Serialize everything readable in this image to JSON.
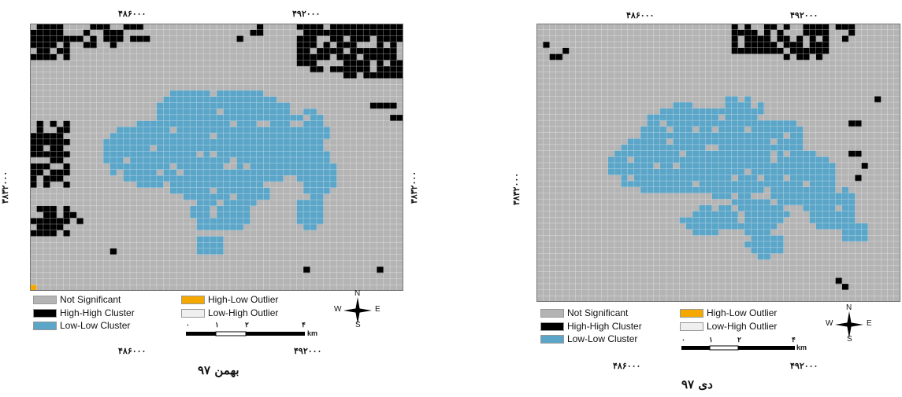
{
  "legend": {
    "not_significant": {
      "label": "Not Significant",
      "color": "#b4b4b4"
    },
    "high_high": {
      "label": "High-High Cluster",
      "color": "#000000"
    },
    "low_low": {
      "label": "Low-Low Cluster",
      "color": "#5aa5c8"
    },
    "high_low": {
      "label": "High-Low Outlier",
      "color": "#f5a800"
    },
    "low_high": {
      "label": "Low-High Outlier",
      "color": "#efefef"
    }
  },
  "scale_bar": {
    "ticks": [
      "۰",
      "۱",
      "۲",
      "۴"
    ],
    "unit": "km"
  },
  "compass": {
    "n": "N",
    "s": "S",
    "e": "E",
    "w": "W"
  },
  "maps": [
    {
      "caption": "بهمن ۹۷",
      "x_ticks": [
        "۴۸۶۰۰۰",
        "۴۹۲۰۰۰"
      ],
      "y_tick": "۳۸۳۲۰۰۰"
    },
    {
      "caption": "دی ۹۷",
      "x_ticks": [
        "۴۸۶۰۰۰",
        "۴۹۲۰۰۰"
      ],
      "y_tick": "۳۸۳۲۰۰۰"
    }
  ]
}
